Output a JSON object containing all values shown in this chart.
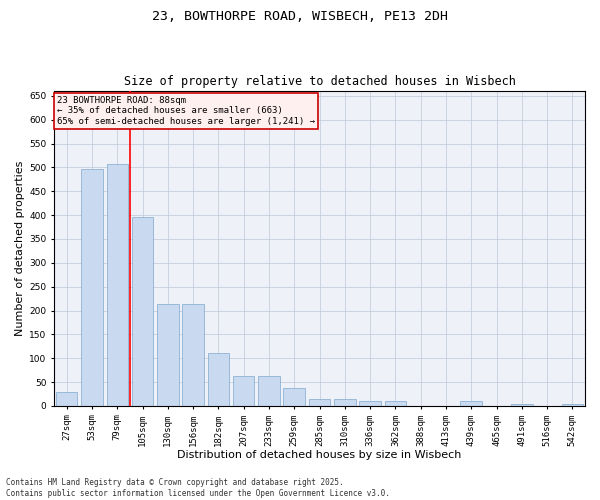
{
  "title_line1": "23, BOWTHORPE ROAD, WISBECH, PE13 2DH",
  "title_line2": "Size of property relative to detached houses in Wisbech",
  "xlabel": "Distribution of detached houses by size in Wisbech",
  "ylabel": "Number of detached properties",
  "categories": [
    "27sqm",
    "53sqm",
    "79sqm",
    "105sqm",
    "130sqm",
    "156sqm",
    "182sqm",
    "207sqm",
    "233sqm",
    "259sqm",
    "285sqm",
    "310sqm",
    "336sqm",
    "362sqm",
    "388sqm",
    "413sqm",
    "439sqm",
    "465sqm",
    "491sqm",
    "516sqm",
    "542sqm"
  ],
  "values": [
    30,
    497,
    507,
    395,
    213,
    213,
    110,
    62,
    62,
    38,
    15,
    15,
    10,
    10,
    0,
    0,
    10,
    0,
    5,
    0,
    5
  ],
  "bar_color": "#c9d9f0",
  "bar_edge_color": "#7fa8d0",
  "grid_color": "#c0c8d8",
  "background_color": "#eef2f8",
  "redline_index": 2,
  "annotation_box_text": "23 BOWTHORPE ROAD: 88sqm\n← 35% of detached houses are smaller (663)\n65% of semi-detached houses are larger (1,241) →",
  "annotation_box_color": "#fff0f0",
  "annotation_box_edge_color": "#cc0000",
  "footer_text": "Contains HM Land Registry data © Crown copyright and database right 2025.\nContains public sector information licensed under the Open Government Licence v3.0.",
  "ylim": [
    0,
    660
  ],
  "yticks": [
    0,
    50,
    100,
    150,
    200,
    250,
    300,
    350,
    400,
    450,
    500,
    550,
    600,
    650
  ],
  "title_fontsize": 9.5,
  "title2_fontsize": 8.5,
  "axis_label_fontsize": 8,
  "tick_fontsize": 6.5,
  "annotation_fontsize": 6.5,
  "footer_fontsize": 5.5
}
